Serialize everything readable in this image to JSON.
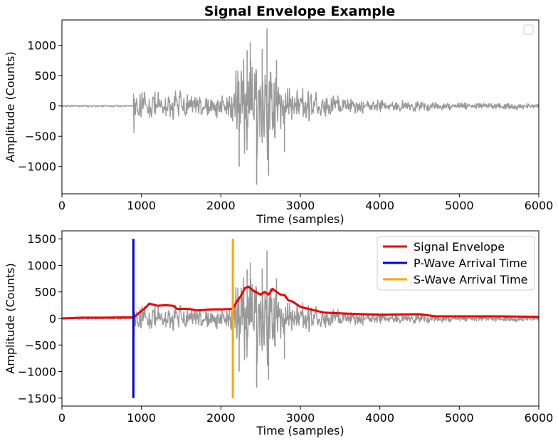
{
  "chart_data": [
    {
      "type": "line",
      "title": "Signal Envelope Example",
      "xlabel": "Time (samples)",
      "ylabel": "Amplitude (Counts)",
      "xlim": [
        0,
        6000
      ],
      "ylim": [
        -1450,
        1420
      ],
      "xticks": [
        0,
        1000,
        2000,
        3000,
        4000,
        5000,
        6000
      ],
      "yticks": [
        -1000,
        -500,
        0,
        500,
        1000
      ],
      "grid": false,
      "legend": {
        "position": "top-right",
        "entries": []
      },
      "series": [
        {
          "color": "#999999",
          "style": "waveform",
          "segments": [
            {
              "x_start": 0,
              "x_end": 900,
              "envelope": [
                [
                  0,
                  15
                ],
                [
                  900,
                  15
                ]
              ]
            },
            {
              "x_start": 900,
              "x_end": 6000,
              "envelope": [
                [
                  900,
                  550
                ],
                [
                  920,
                  420
                ],
                [
                  1000,
                  330
                ],
                [
                  1200,
                  300
                ],
                [
                  1400,
                  320
                ],
                [
                  1600,
                  250
                ],
                [
                  1800,
                  230
                ],
                [
                  2000,
                  240
                ],
                [
                  2100,
                  350
                ],
                [
                  2150,
                  620
                ],
                [
                  2250,
                  800
                ],
                [
                  2350,
                  1050
                ],
                [
                  2450,
                  900
                ],
                [
                  2550,
                  1250
                ],
                [
                  2650,
                  700
                ],
                [
                  2800,
                  560
                ],
                [
                  2900,
                  420
                ],
                [
                  3000,
                  330
                ],
                [
                  3300,
                  230
                ],
                [
                  3600,
                  170
                ],
                [
                  4000,
                  120
                ],
                [
                  4500,
                  110
                ],
                [
                  5000,
                  70
                ],
                [
                  5500,
                  60
                ],
                [
                  6000,
                  60
                ]
              ]
            }
          ],
          "spikes": [
            {
              "x": 2230,
              "y": -1000
            },
            {
              "x": 2330,
              "y": 920
            },
            {
              "x": 2370,
              "y": 1050
            },
            {
              "x": 2450,
              "y": -1300
            },
            {
              "x": 2520,
              "y": 940
            },
            {
              "x": 2580,
              "y": 1280
            },
            {
              "x": 2600,
              "y": -1150
            },
            {
              "x": 2700,
              "y": 760
            },
            {
              "x": 2800,
              "y": -760
            }
          ]
        }
      ]
    },
    {
      "type": "line",
      "title": "",
      "xlabel": "Time (samples)",
      "ylabel": "Amplitude (Counts)",
      "xlim": [
        0,
        6000
      ],
      "ylim": [
        -1650,
        1650
      ],
      "xticks": [
        0,
        1000,
        2000,
        3000,
        4000,
        5000,
        6000
      ],
      "yticks": [
        -1500,
        -1000,
        -500,
        0,
        500,
        1000,
        1500
      ],
      "grid": false,
      "legend": {
        "position": "top-right",
        "entries": [
          "Signal Envelope",
          "P-Wave Arrival Time",
          "S-Wave Arrival Time"
        ]
      },
      "series": [
        {
          "color": "#999999",
          "style": "waveform",
          "segments": [
            {
              "x_start": 0,
              "x_end": 900,
              "envelope": [
                [
                  0,
                  15
                ],
                [
                  900,
                  15
                ]
              ]
            },
            {
              "x_start": 900,
              "x_end": 6000,
              "envelope": [
                [
                  900,
                  550
                ],
                [
                  920,
                  420
                ],
                [
                  1000,
                  330
                ],
                [
                  1200,
                  300
                ],
                [
                  1400,
                  320
                ],
                [
                  1600,
                  250
                ],
                [
                  1800,
                  230
                ],
                [
                  2000,
                  240
                ],
                [
                  2100,
                  350
                ],
                [
                  2150,
                  620
                ],
                [
                  2250,
                  800
                ],
                [
                  2350,
                  1050
                ],
                [
                  2450,
                  900
                ],
                [
                  2550,
                  1250
                ],
                [
                  2650,
                  700
                ],
                [
                  2800,
                  560
                ],
                [
                  2900,
                  420
                ],
                [
                  3000,
                  330
                ],
                [
                  3300,
                  230
                ],
                [
                  3600,
                  170
                ],
                [
                  4000,
                  120
                ],
                [
                  4500,
                  110
                ],
                [
                  5000,
                  70
                ],
                [
                  5500,
                  60
                ],
                [
                  6000,
                  60
                ]
              ]
            }
          ],
          "spikes": [
            {
              "x": 2230,
              "y": -1000
            },
            {
              "x": 2330,
              "y": 920
            },
            {
              "x": 2370,
              "y": 1050
            },
            {
              "x": 2450,
              "y": -1300
            },
            {
              "x": 2520,
              "y": 940
            },
            {
              "x": 2580,
              "y": 1280
            },
            {
              "x": 2600,
              "y": -1150
            },
            {
              "x": 2700,
              "y": 760
            },
            {
              "x": 2800,
              "y": -760
            }
          ]
        },
        {
          "name": "Signal Envelope",
          "color": "#ee0000",
          "x": [
            0,
            250,
            500,
            800,
            900,
            950,
            1050,
            1100,
            1200,
            1300,
            1400,
            1450,
            1600,
            1700,
            1900,
            2000,
            2150,
            2200,
            2250,
            2300,
            2350,
            2400,
            2500,
            2550,
            2600,
            2650,
            2700,
            2750,
            2800,
            2850,
            2900,
            3000,
            3100,
            3300,
            3600,
            4000,
            4500,
            4700,
            5000,
            5500,
            6000
          ],
          "y": [
            0,
            15,
            15,
            20,
            20,
            80,
            200,
            280,
            240,
            250,
            240,
            180,
            180,
            150,
            170,
            170,
            180,
            320,
            420,
            570,
            600,
            530,
            450,
            500,
            450,
            560,
            500,
            450,
            440,
            340,
            320,
            220,
            180,
            110,
            90,
            70,
            80,
            40,
            40,
            40,
            30
          ]
        },
        {
          "name": "P-Wave Arrival Time",
          "color": "#0000dd",
          "x": [
            900,
            900
          ],
          "y": [
            -1500,
            1500
          ]
        },
        {
          "name": "S-Wave Arrival Time",
          "color": "#ffa500",
          "x": [
            2150,
            2150
          ],
          "y": [
            -1500,
            1500
          ]
        }
      ]
    }
  ]
}
